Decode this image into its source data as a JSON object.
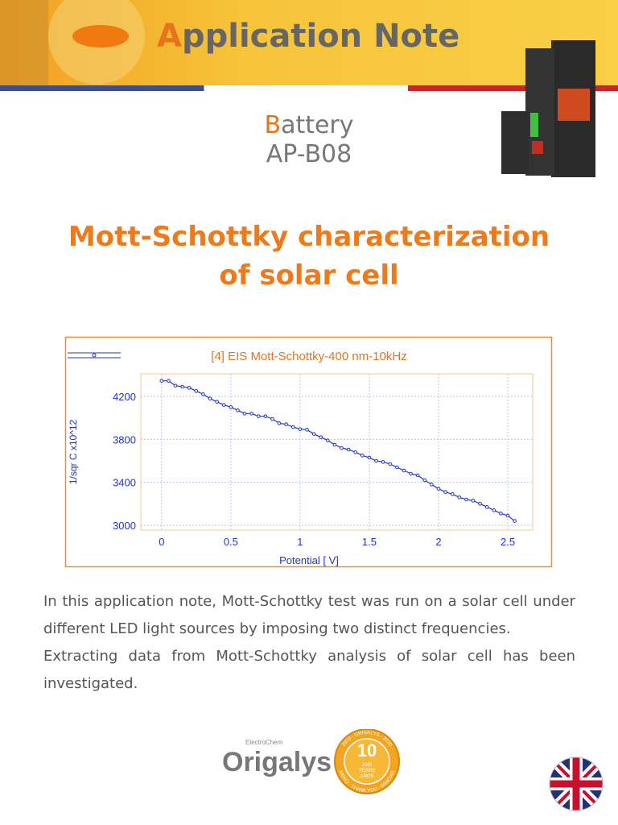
{
  "header": {
    "title": "Application Note",
    "category": "Battery",
    "code": "AP-B08"
  },
  "main_title": {
    "lines": [
      "Mott-Schottky characterization",
      "of solar cell"
    ]
  },
  "chart_data": {
    "type": "line",
    "title": "[4] EIS Mott-Schottky-400 nm-10kHz",
    "x_label": "Potential [ V]",
    "y_label": "1/sqr C x10^12",
    "x": [
      0,
      0.05,
      0.1,
      0.15,
      0.2,
      0.25,
      0.3,
      0.35,
      0.4,
      0.45,
      0.5,
      0.55,
      0.6,
      0.65,
      0.7,
      0.75,
      0.8,
      0.85,
      0.9,
      0.95,
      1.0,
      1.05,
      1.1,
      1.15,
      1.2,
      1.25,
      1.3,
      1.35,
      1.4,
      1.45,
      1.5,
      1.55,
      1.6,
      1.65,
      1.7,
      1.75,
      1.8,
      1.85,
      1.9,
      1.95,
      2.0,
      2.05,
      2.1,
      2.15,
      2.2,
      2.25,
      2.3,
      2.35,
      2.4,
      2.45,
      2.5,
      2.55
    ],
    "series": [
      {
        "color": "#2233cc",
        "values": [
          4345,
          4345,
          4300,
          4290,
          4280,
          4250,
          4220,
          4180,
          4150,
          4120,
          4100,
          4070,
          4040,
          4040,
          4015,
          4015,
          3990,
          3950,
          3940,
          3915,
          3895,
          3890,
          3850,
          3820,
          3790,
          3750,
          3720,
          3705,
          3680,
          3650,
          3630,
          3600,
          3590,
          3570,
          3540,
          3510,
          3480,
          3465,
          3420,
          3380,
          3340,
          3310,
          3290,
          3260,
          3240,
          3230,
          3200,
          3170,
          3140,
          3110,
          3090,
          3040
        ]
      }
    ],
    "xlim": [
      -0.15,
      2.68
    ],
    "ylim": [
      2955,
      4410
    ],
    "xticks": [
      0,
      0.5,
      1,
      1.5,
      2,
      2.5
    ],
    "yticks": [
      3000,
      3400,
      3800,
      4200
    ],
    "grid": true
  },
  "body": {
    "paragraphs": [
      "In this application note, Mott-Schottky test was run on a solar cell under different LED light sources by imposing two distinct frequencies.",
      "Extracting data from Mott-Schottky analysis of solar cell has been investigated."
    ]
  },
  "footer": {
    "logo": "Origalys",
    "logo_tag": "ElectroChem",
    "badge_number": "10",
    "badge_lines": [
      "ANS",
      "YEARS",
      "AÑOS"
    ],
    "badge_ring_top": "2010 - ORIGALYS - 2020",
    "badge_ring_bottom": "MERCI - THANK YOU - GRACIAS"
  }
}
